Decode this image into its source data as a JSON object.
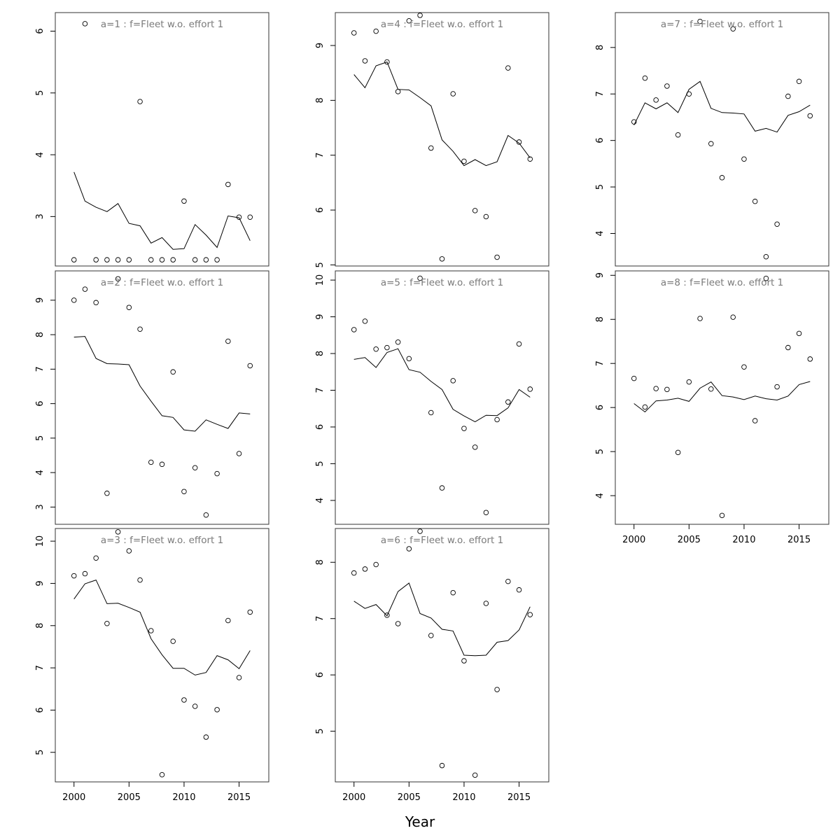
{
  "xlabel": "Year",
  "chart_data": [
    {
      "type": "line",
      "title": "a=1  :  f=Fleet w.o. effort 1",
      "xlabel": "",
      "ylabel": "",
      "xlim": [
        1998.3,
        2017.7
      ],
      "ylim": [
        2.2,
        6.3
      ],
      "xticks": [
        2000,
        2005,
        2010,
        2015
      ],
      "yticks": [
        3,
        4,
        5,
        6
      ],
      "show_x_axis": false,
      "series": [
        {
          "kind": "points",
          "x": [
            2000,
            2001,
            2002,
            2003,
            2004,
            2005,
            2006,
            2007,
            2008,
            2009,
            2010,
            2011,
            2012,
            2013,
            2014,
            2015,
            2016
          ],
          "y": [
            2.3,
            6.12,
            2.3,
            2.3,
            2.3,
            2.3,
            4.86,
            2.3,
            2.3,
            2.3,
            3.25,
            2.3,
            2.3,
            2.3,
            3.52,
            2.99,
            2.99
          ]
        },
        {
          "kind": "line",
          "x": [
            2000,
            2001,
            2002,
            2003,
            2004,
            2005,
            2006,
            2007,
            2008,
            2009,
            2010,
            2011,
            2012,
            2013,
            2014,
            2015,
            2016
          ],
          "y": [
            3.72,
            3.25,
            3.15,
            3.08,
            3.21,
            2.89,
            2.85,
            2.57,
            2.66,
            2.47,
            2.48,
            2.87,
            2.7,
            2.5,
            3.01,
            2.98,
            2.61
          ]
        }
      ]
    },
    {
      "type": "line",
      "title": "a=2  :  f=Fleet w.o. effort 1",
      "xlabel": "",
      "ylabel": "",
      "xlim": [
        1998.3,
        2017.7
      ],
      "ylim": [
        2.5,
        9.85
      ],
      "xticks": [
        2000,
        2005,
        2010,
        2015
      ],
      "yticks": [
        3,
        4,
        5,
        6,
        7,
        8,
        9
      ],
      "show_x_axis": false,
      "series": [
        {
          "kind": "points",
          "x": [
            2000,
            2001,
            2002,
            2003,
            2004,
            2005,
            2006,
            2007,
            2008,
            2009,
            2010,
            2011,
            2012,
            2013,
            2014,
            2015,
            2016
          ],
          "y": [
            9.0,
            9.32,
            8.93,
            3.4,
            9.62,
            8.79,
            8.16,
            4.3,
            4.24,
            6.92,
            3.45,
            4.14,
            2.77,
            3.97,
            7.81,
            4.55,
            7.1
          ]
        },
        {
          "kind": "line",
          "x": [
            2000,
            2001,
            2002,
            2003,
            2004,
            2005,
            2006,
            2007,
            2008,
            2009,
            2010,
            2011,
            2012,
            2013,
            2014,
            2015,
            2016
          ],
          "y": [
            7.93,
            7.95,
            7.31,
            7.16,
            7.15,
            7.13,
            6.51,
            6.07,
            5.65,
            5.6,
            5.24,
            5.2,
            5.53,
            5.4,
            5.28,
            5.73,
            5.7
          ]
        }
      ]
    },
    {
      "type": "line",
      "title": "a=3  :  f=Fleet w.o. effort 1",
      "xlabel": "",
      "ylabel": "",
      "xlim": [
        1998.3,
        2017.7
      ],
      "ylim": [
        4.3,
        10.3
      ],
      "xticks": [
        2000,
        2005,
        2010,
        2015
      ],
      "yticks": [
        5,
        6,
        7,
        8,
        9,
        10
      ],
      "show_x_axis": true,
      "series": [
        {
          "kind": "points",
          "x": [
            2000,
            2001,
            2002,
            2003,
            2004,
            2005,
            2006,
            2007,
            2008,
            2009,
            2010,
            2011,
            2012,
            2013,
            2014,
            2015,
            2016
          ],
          "y": [
            9.18,
            9.23,
            9.6,
            8.05,
            10.22,
            9.77,
            9.08,
            7.88,
            4.47,
            7.63,
            6.24,
            6.09,
            5.36,
            6.01,
            8.12,
            6.77,
            8.32
          ]
        },
        {
          "kind": "line",
          "x": [
            2000,
            2001,
            2002,
            2003,
            2004,
            2005,
            2006,
            2007,
            2008,
            2009,
            2010,
            2011,
            2012,
            2013,
            2014,
            2015,
            2016
          ],
          "y": [
            8.63,
            8.99,
            9.08,
            8.52,
            8.53,
            8.43,
            8.32,
            7.69,
            7.31,
            6.99,
            6.99,
            6.83,
            6.89,
            7.29,
            7.19,
            6.98,
            7.41
          ]
        }
      ]
    },
    {
      "type": "line",
      "title": "a=4  :  f=Fleet w.o. effort 1",
      "xlabel": "",
      "ylabel": "",
      "xlim": [
        1998.3,
        2017.7
      ],
      "ylim": [
        4.98,
        9.6
      ],
      "xticks": [
        2000,
        2005,
        2010,
        2015
      ],
      "yticks": [
        5,
        6,
        7,
        8,
        9
      ],
      "show_x_axis": false,
      "series": [
        {
          "kind": "points",
          "x": [
            2000,
            2001,
            2002,
            2003,
            2004,
            2005,
            2006,
            2007,
            2008,
            2009,
            2010,
            2011,
            2012,
            2013,
            2014,
            2015,
            2016
          ],
          "y": [
            9.23,
            8.72,
            9.26,
            8.7,
            8.16,
            9.45,
            9.55,
            7.13,
            5.11,
            8.12,
            6.89,
            5.99,
            5.88,
            5.14,
            8.59,
            7.24,
            6.93
          ]
        },
        {
          "kind": "line",
          "x": [
            2000,
            2001,
            2002,
            2003,
            2004,
            2005,
            2006,
            2007,
            2008,
            2009,
            2010,
            2011,
            2012,
            2013,
            2014,
            2015,
            2016
          ],
          "y": [
            8.47,
            8.23,
            8.63,
            8.7,
            8.2,
            8.19,
            8.05,
            7.9,
            7.28,
            7.07,
            6.81,
            6.92,
            6.81,
            6.88,
            7.36,
            7.22,
            6.95
          ]
        }
      ]
    },
    {
      "type": "line",
      "title": "a=5  :  f=Fleet w.o. effort 1",
      "xlabel": "",
      "ylabel": "",
      "xlim": [
        1998.3,
        2017.7
      ],
      "ylim": [
        3.35,
        10.25
      ],
      "xticks": [
        2000,
        2005,
        2010,
        2015
      ],
      "yticks": [
        4,
        5,
        6,
        7,
        8,
        9,
        10
      ],
      "show_x_axis": false,
      "series": [
        {
          "kind": "points",
          "x": [
            2000,
            2001,
            2002,
            2003,
            2004,
            2005,
            2006,
            2007,
            2008,
            2009,
            2010,
            2011,
            2012,
            2013,
            2014,
            2015,
            2016
          ],
          "y": [
            8.65,
            8.88,
            8.12,
            8.16,
            8.31,
            7.86,
            10.05,
            6.39,
            4.34,
            7.26,
            5.96,
            5.45,
            3.67,
            6.2,
            6.68,
            8.26,
            7.03
          ]
        },
        {
          "kind": "line",
          "x": [
            2000,
            2001,
            2002,
            2003,
            2004,
            2005,
            2006,
            2007,
            2008,
            2009,
            2010,
            2011,
            2012,
            2013,
            2014,
            2015,
            2016
          ],
          "y": [
            7.84,
            7.89,
            7.62,
            8.03,
            8.13,
            7.56,
            7.49,
            7.24,
            7.02,
            6.48,
            6.3,
            6.14,
            6.32,
            6.31,
            6.52,
            7.02,
            6.81
          ]
        }
      ]
    },
    {
      "type": "line",
      "title": "a=6  :  f=Fleet w.o. effort 1",
      "xlabel": "",
      "ylabel": "",
      "xlim": [
        1998.3,
        2017.7
      ],
      "ylim": [
        4.1,
        8.6
      ],
      "xticks": [
        2000,
        2005,
        2010,
        2015
      ],
      "yticks": [
        5,
        6,
        7,
        8
      ],
      "show_x_axis": true,
      "series": [
        {
          "kind": "points",
          "x": [
            2000,
            2001,
            2002,
            2003,
            2004,
            2005,
            2006,
            2007,
            2008,
            2009,
            2010,
            2011,
            2012,
            2013,
            2014,
            2015,
            2016
          ],
          "y": [
            7.81,
            7.88,
            7.96,
            7.06,
            6.91,
            8.24,
            8.55,
            6.7,
            4.39,
            7.46,
            6.25,
            4.22,
            7.27,
            5.74,
            7.66,
            7.51,
            7.07
          ]
        },
        {
          "kind": "line",
          "x": [
            2000,
            2001,
            2002,
            2003,
            2004,
            2005,
            2006,
            2007,
            2008,
            2009,
            2010,
            2011,
            2012,
            2013,
            2014,
            2015,
            2016
          ],
          "y": [
            7.31,
            7.18,
            7.25,
            7.05,
            7.48,
            7.63,
            7.09,
            7.01,
            6.81,
            6.78,
            6.35,
            6.34,
            6.35,
            6.58,
            6.61,
            6.8,
            7.21
          ]
        }
      ]
    },
    {
      "type": "line",
      "title": "a=7  :  f=Fleet w.o. effort 1",
      "xlabel": "",
      "ylabel": "",
      "xlim": [
        1998.3,
        2017.7
      ],
      "ylim": [
        3.3,
        8.75
      ],
      "xticks": [
        2000,
        2005,
        2010,
        2015
      ],
      "yticks": [
        4,
        5,
        6,
        7,
        8
      ],
      "show_x_axis": false,
      "series": [
        {
          "kind": "points",
          "x": [
            2000,
            2001,
            2002,
            2003,
            2004,
            2005,
            2006,
            2007,
            2008,
            2009,
            2010,
            2011,
            2012,
            2013,
            2014,
            2015,
            2016
          ],
          "y": [
            6.4,
            7.34,
            6.87,
            7.17,
            6.12,
            7.0,
            8.56,
            5.93,
            5.2,
            8.4,
            5.6,
            4.69,
            3.5,
            4.2,
            6.95,
            7.27,
            6.53
          ]
        },
        {
          "kind": "line",
          "x": [
            2000,
            2001,
            2002,
            2003,
            2004,
            2005,
            2006,
            2007,
            2008,
            2009,
            2010,
            2011,
            2012,
            2013,
            2014,
            2015,
            2016
          ],
          "y": [
            6.33,
            6.81,
            6.68,
            6.81,
            6.6,
            7.1,
            7.27,
            6.69,
            6.6,
            6.59,
            6.57,
            6.2,
            6.26,
            6.18,
            6.54,
            6.62,
            6.76
          ]
        }
      ]
    },
    {
      "type": "line",
      "title": "a=8  :  f=Fleet w.o. effort 1",
      "xlabel": "",
      "ylabel": "",
      "xlim": [
        1998.3,
        2017.7
      ],
      "ylim": [
        3.35,
        9.1
      ],
      "xticks": [
        2000,
        2005,
        2010,
        2015
      ],
      "yticks": [
        4,
        5,
        6,
        7,
        8,
        9
      ],
      "show_x_axis": true,
      "series": [
        {
          "kind": "points",
          "x": [
            2000,
            2001,
            2002,
            2003,
            2004,
            2005,
            2006,
            2007,
            2008,
            2009,
            2010,
            2011,
            2012,
            2013,
            2014,
            2015,
            2016
          ],
          "y": [
            6.66,
            6.01,
            6.43,
            6.41,
            4.98,
            6.58,
            8.02,
            6.42,
            3.55,
            8.05,
            6.92,
            5.7,
            8.93,
            6.47,
            7.36,
            7.68,
            7.1
          ]
        },
        {
          "kind": "line",
          "x": [
            2000,
            2001,
            2002,
            2003,
            2004,
            2005,
            2006,
            2007,
            2008,
            2009,
            2010,
            2011,
            2012,
            2013,
            2014,
            2015,
            2016
          ],
          "y": [
            6.09,
            5.9,
            6.15,
            6.17,
            6.21,
            6.14,
            6.44,
            6.58,
            6.27,
            6.24,
            6.18,
            6.26,
            6.2,
            6.17,
            6.26,
            6.52,
            6.59
          ]
        }
      ]
    }
  ]
}
